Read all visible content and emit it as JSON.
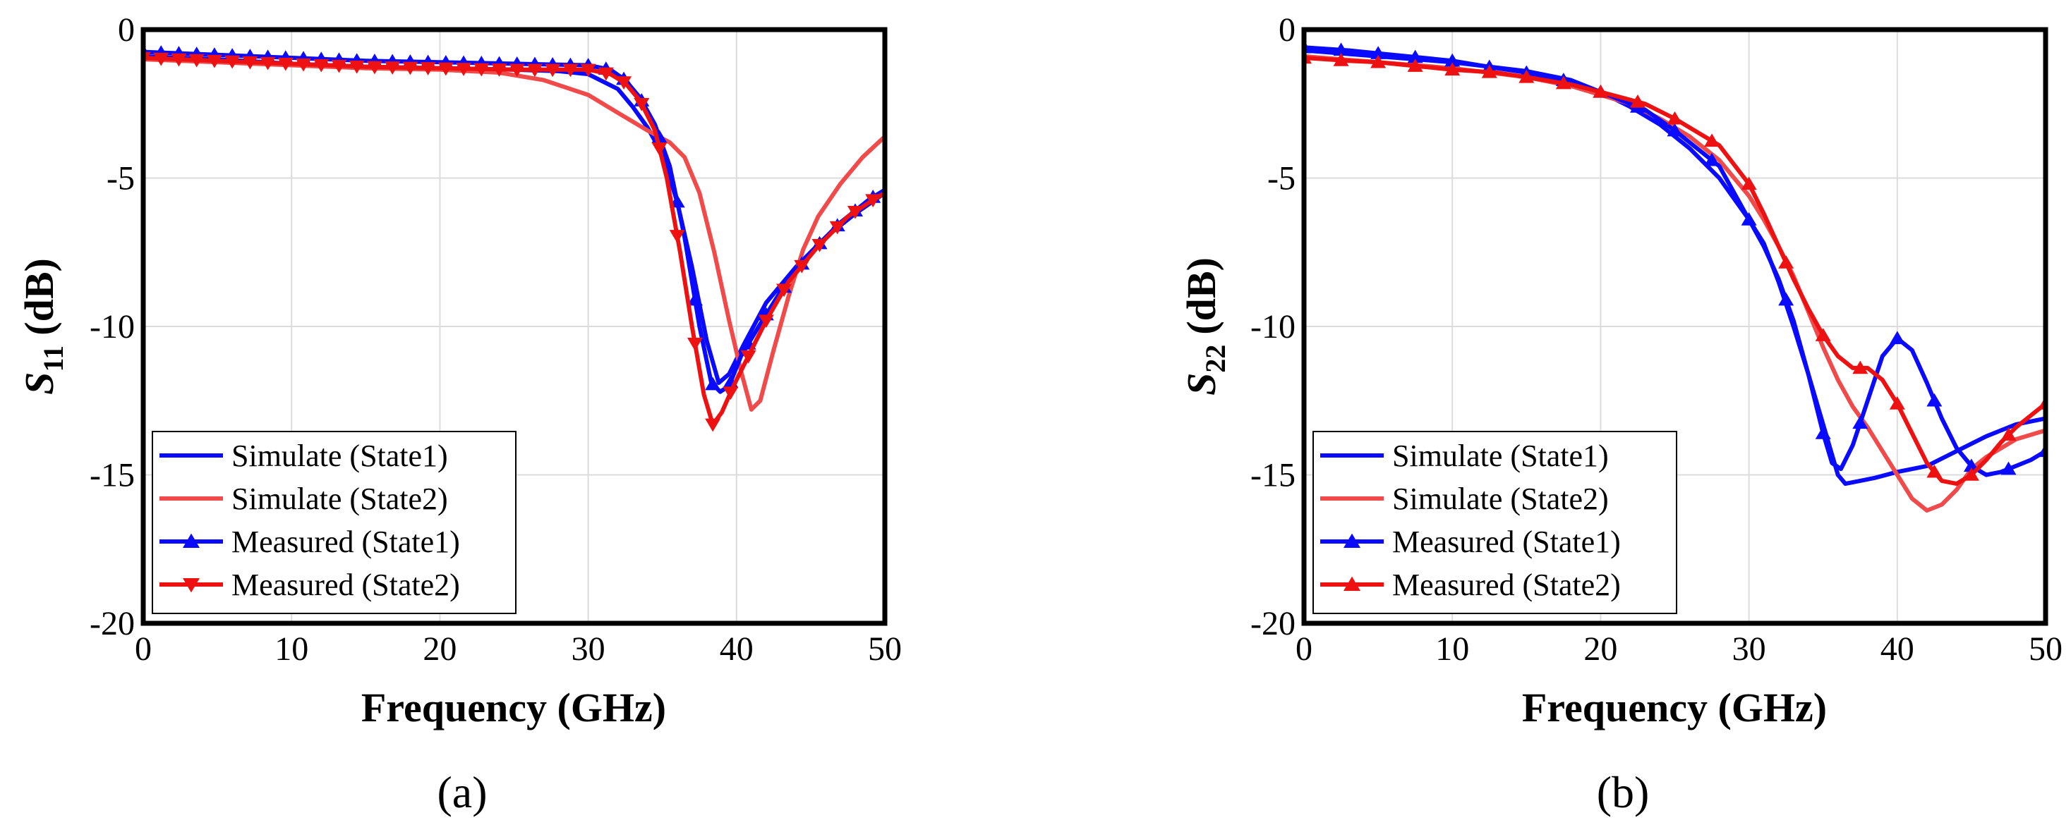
{
  "chart_data": [
    {
      "type": "line",
      "panel_label": "(a)",
      "xlabel": "Frequency (GHz)",
      "ylabel_main": "S",
      "ylabel_sub": "11",
      "ylabel_unit": "(dB)",
      "xlim": [
        0,
        50
      ],
      "ylim": [
        -20,
        0
      ],
      "xticks": [
        0,
        10,
        20,
        30,
        40,
        50
      ],
      "yticks": [
        0,
        -5,
        -10,
        -15,
        -20
      ],
      "grid": true,
      "legend_position": "bottom-left",
      "series": [
        {
          "name": "Simulate (State1)",
          "color": "#0a0aff",
          "marker": "none",
          "points": [
            [
              0,
              -0.9
            ],
            [
              5,
              -1.0
            ],
            [
              10,
              -1.15
            ],
            [
              15,
              -1.25
            ],
            [
              20,
              -1.3
            ],
            [
              25,
              -1.35
            ],
            [
              28,
              -1.4
            ],
            [
              30,
              -1.5
            ],
            [
              32,
              -2.0
            ],
            [
              33,
              -2.6
            ],
            [
              34,
              -3.3
            ],
            [
              35,
              -4.2
            ],
            [
              36,
              -5.8
            ],
            [
              37,
              -8.0
            ],
            [
              38,
              -10.5
            ],
            [
              38.8,
              -11.9
            ],
            [
              39.5,
              -11.6
            ],
            [
              40.5,
              -10.6
            ],
            [
              42,
              -9.2
            ],
            [
              44,
              -8.0
            ],
            [
              46,
              -7.0
            ],
            [
              48,
              -6.2
            ],
            [
              50,
              -5.5
            ]
          ]
        },
        {
          "name": "Simulate (State2)",
          "color": "#f04a4a",
          "marker": "none",
          "points": [
            [
              0,
              -1.0
            ],
            [
              5,
              -1.1
            ],
            [
              10,
              -1.2
            ],
            [
              15,
              -1.3
            ],
            [
              20,
              -1.35
            ],
            [
              24,
              -1.45
            ],
            [
              27,
              -1.7
            ],
            [
              30,
              -2.2
            ],
            [
              32,
              -2.8
            ],
            [
              34,
              -3.4
            ],
            [
              35.5,
              -3.8
            ],
            [
              36.5,
              -4.3
            ],
            [
              37.5,
              -5.5
            ],
            [
              38.5,
              -7.5
            ],
            [
              39.5,
              -9.8
            ],
            [
              40.3,
              -11.5
            ],
            [
              41,
              -12.8
            ],
            [
              41.6,
              -12.5
            ],
            [
              42.5,
              -10.8
            ],
            [
              43.5,
              -9.0
            ],
            [
              44.5,
              -7.4
            ],
            [
              45.5,
              -6.3
            ],
            [
              47,
              -5.2
            ],
            [
              48.5,
              -4.3
            ],
            [
              50,
              -3.6
            ]
          ]
        },
        {
          "name": "Measured (State1)",
          "color": "#0a0aff",
          "marker": "triangle-up",
          "marker_every": 1.2,
          "points": [
            [
              0,
              -0.75
            ],
            [
              5,
              -0.85
            ],
            [
              10,
              -0.95
            ],
            [
              15,
              -1.05
            ],
            [
              20,
              -1.1
            ],
            [
              25,
              -1.15
            ],
            [
              30,
              -1.2
            ],
            [
              31.5,
              -1.35
            ],
            [
              32.5,
              -1.7
            ],
            [
              33.5,
              -2.3
            ],
            [
              34.5,
              -3.2
            ],
            [
              35.5,
              -4.6
            ],
            [
              36.5,
              -7.0
            ],
            [
              37.5,
              -10.0
            ],
            [
              38.3,
              -11.9
            ],
            [
              38.9,
              -12.2
            ],
            [
              39.5,
              -12.0
            ],
            [
              40.3,
              -11.0
            ],
            [
              41.5,
              -10.0
            ],
            [
              43,
              -8.8
            ],
            [
              45,
              -7.5
            ],
            [
              47,
              -6.5
            ],
            [
              49,
              -5.7
            ],
            [
              50,
              -5.4
            ]
          ]
        },
        {
          "name": "Measured (State2)",
          "color": "#ee1111",
          "marker": "triangle-down",
          "marker_every": 1.2,
          "points": [
            [
              0,
              -0.95
            ],
            [
              5,
              -1.05
            ],
            [
              10,
              -1.15
            ],
            [
              15,
              -1.25
            ],
            [
              20,
              -1.3
            ],
            [
              25,
              -1.35
            ],
            [
              30,
              -1.35
            ],
            [
              31.5,
              -1.5
            ],
            [
              32.5,
              -1.8
            ],
            [
              33.5,
              -2.4
            ],
            [
              34.5,
              -3.4
            ],
            [
              35.3,
              -5.0
            ],
            [
              36.2,
              -7.5
            ],
            [
              37,
              -10.0
            ],
            [
              37.8,
              -12.3
            ],
            [
              38.4,
              -13.3
            ],
            [
              39,
              -12.9
            ],
            [
              39.8,
              -12.0
            ],
            [
              40.8,
              -11.0
            ],
            [
              42,
              -9.8
            ],
            [
              43.5,
              -8.5
            ],
            [
              45.5,
              -7.3
            ],
            [
              47.5,
              -6.3
            ],
            [
              49,
              -5.8
            ],
            [
              50,
              -5.5
            ]
          ]
        }
      ]
    },
    {
      "type": "line",
      "panel_label": "(b)",
      "xlabel": "Frequency (GHz)",
      "ylabel_main": "S",
      "ylabel_sub": "22",
      "ylabel_unit": "(dB)",
      "xlim": [
        0,
        50
      ],
      "ylim": [
        -20,
        0
      ],
      "xticks": [
        0,
        10,
        20,
        30,
        40,
        50
      ],
      "yticks": [
        0,
        -5,
        -10,
        -15,
        -20
      ],
      "grid": true,
      "legend_position": "bottom-left",
      "series": [
        {
          "name": "Simulate (State1)",
          "color": "#0a0aff",
          "marker": "none",
          "points": [
            [
              0,
              -0.7
            ],
            [
              5,
              -0.9
            ],
            [
              10,
              -1.1
            ],
            [
              15,
              -1.4
            ],
            [
              18,
              -1.7
            ],
            [
              20,
              -2.1
            ],
            [
              22,
              -2.6
            ],
            [
              24,
              -3.2
            ],
            [
              26,
              -4.0
            ],
            [
              28,
              -5.0
            ],
            [
              30,
              -6.4
            ],
            [
              31,
              -7.2
            ],
            [
              32,
              -8.5
            ],
            [
              33,
              -10.0
            ],
            [
              34,
              -11.6
            ],
            [
              35,
              -13.3
            ],
            [
              36,
              -15.0
            ],
            [
              36.5,
              -15.3
            ],
            [
              37.5,
              -15.2
            ],
            [
              38.5,
              -15.1
            ],
            [
              40,
              -14.9
            ],
            [
              42,
              -14.7
            ],
            [
              44,
              -14.2
            ],
            [
              46,
              -13.7
            ],
            [
              48,
              -13.3
            ],
            [
              50,
              -13.1
            ]
          ]
        },
        {
          "name": "Simulate (State2)",
          "color": "#f04a4a",
          "marker": "none",
          "points": [
            [
              0,
              -0.9
            ],
            [
              5,
              -1.1
            ],
            [
              10,
              -1.3
            ],
            [
              15,
              -1.6
            ],
            [
              18,
              -1.9
            ],
            [
              20,
              -2.2
            ],
            [
              22,
              -2.5
            ],
            [
              24,
              -3.0
            ],
            [
              26,
              -3.6
            ],
            [
              28,
              -4.4
            ],
            [
              30,
              -5.6
            ],
            [
              31,
              -6.4
            ],
            [
              32,
              -7.3
            ],
            [
              33,
              -8.3
            ],
            [
              34,
              -9.5
            ],
            [
              35,
              -10.7
            ],
            [
              36,
              -11.8
            ],
            [
              37,
              -12.7
            ],
            [
              38,
              -13.4
            ],
            [
              39,
              -14.2
            ],
            [
              40,
              -15.0
            ],
            [
              41,
              -15.8
            ],
            [
              42,
              -16.2
            ],
            [
              43,
              -16.0
            ],
            [
              44,
              -15.5
            ],
            [
              45,
              -14.8
            ],
            [
              46,
              -14.4
            ],
            [
              48,
              -13.8
            ],
            [
              50,
              -13.5
            ]
          ]
        },
        {
          "name": "Measured (State1)",
          "color": "#0a0aff",
          "marker": "triangle-up",
          "marker_every": 2.5,
          "points": [
            [
              0,
              -0.6
            ],
            [
              3,
              -0.7
            ],
            [
              5,
              -0.8
            ],
            [
              8,
              -0.95
            ],
            [
              10,
              -1.05
            ],
            [
              13,
              -1.3
            ],
            [
              15,
              -1.45
            ],
            [
              18,
              -1.75
            ],
            [
              20,
              -2.1
            ],
            [
              23,
              -2.7
            ],
            [
              25,
              -3.4
            ],
            [
              28,
              -4.6
            ],
            [
              30,
              -6.4
            ],
            [
              31,
              -7.3
            ],
            [
              32,
              -8.4
            ],
            [
              33,
              -9.8
            ],
            [
              34,
              -11.6
            ],
            [
              35,
              -13.6
            ],
            [
              35.6,
              -14.6
            ],
            [
              36.2,
              -14.8
            ],
            [
              37,
              -14.0
            ],
            [
              38,
              -12.5
            ],
            [
              39,
              -11.0
            ],
            [
              40,
              -10.4
            ],
            [
              41,
              -10.8
            ],
            [
              42,
              -11.9
            ],
            [
              43,
              -13.1
            ],
            [
              44,
              -14.1
            ],
            [
              45,
              -14.7
            ],
            [
              46,
              -15.0
            ],
            [
              47,
              -14.9
            ],
            [
              48,
              -14.7
            ],
            [
              49,
              -14.5
            ],
            [
              50,
              -14.2
            ]
          ]
        },
        {
          "name": "Measured (State2)",
          "color": "#ee1111",
          "marker": "triangle-up",
          "marker_every": 2.5,
          "points": [
            [
              0,
              -0.95
            ],
            [
              3,
              -1.05
            ],
            [
              5,
              -1.1
            ],
            [
              8,
              -1.25
            ],
            [
              10,
              -1.35
            ],
            [
              13,
              -1.45
            ],
            [
              15,
              -1.6
            ],
            [
              18,
              -1.85
            ],
            [
              20,
              -2.1
            ],
            [
              23,
              -2.5
            ],
            [
              25,
              -3.0
            ],
            [
              28,
              -3.9
            ],
            [
              30,
              -5.2
            ],
            [
              31,
              -6.2
            ],
            [
              32,
              -7.3
            ],
            [
              33,
              -8.4
            ],
            [
              34,
              -9.4
            ],
            [
              35,
              -10.3
            ],
            [
              36,
              -11.0
            ],
            [
              37,
              -11.4
            ],
            [
              38,
              -11.4
            ],
            [
              39,
              -11.8
            ],
            [
              40,
              -12.6
            ],
            [
              41,
              -13.6
            ],
            [
              42,
              -14.6
            ],
            [
              43,
              -15.2
            ],
            [
              44,
              -15.3
            ],
            [
              45,
              -15.0
            ],
            [
              46,
              -14.5
            ],
            [
              47,
              -13.9
            ],
            [
              48,
              -13.4
            ],
            [
              49,
              -13.0
            ],
            [
              50,
              -12.6
            ]
          ]
        }
      ]
    }
  ]
}
